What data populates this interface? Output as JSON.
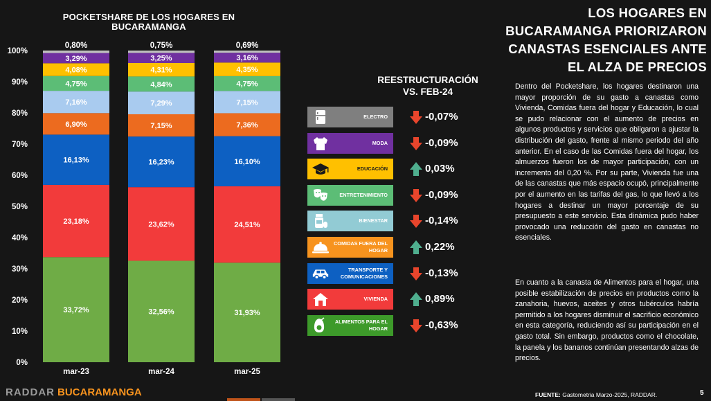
{
  "chart_data": {
    "type": "bar",
    "stacked": true,
    "title": "POCKETSHARE DE LOS HOGARES EN BUCARAMANGA",
    "categories": [
      "mar-23",
      "mar-24",
      "mar-25"
    ],
    "ylim": [
      0,
      100
    ],
    "yticks": [
      "0%",
      "10%",
      "20%",
      "30%",
      "40%",
      "50%",
      "60%",
      "70%",
      "80%",
      "90%",
      "100%"
    ],
    "series": [
      {
        "color": "#6fac46",
        "values": [
          33.72,
          32.56,
          31.93
        ],
        "labels": [
          "33,72%",
          "32,56%",
          "31,93%"
        ]
      },
      {
        "color": "#f23b3b",
        "values": [
          23.18,
          23.62,
          24.51
        ],
        "labels": [
          "23,18%",
          "23,62%",
          "24,51%"
        ]
      },
      {
        "color": "#0d60c2",
        "values": [
          16.13,
          16.23,
          16.1
        ],
        "labels": [
          "16,13%",
          "16,23%",
          "16,10%"
        ]
      },
      {
        "color": "#ec6b1f",
        "values": [
          6.9,
          7.15,
          7.36
        ],
        "labels": [
          "6,90%",
          "7,15%",
          "7,36%"
        ]
      },
      {
        "color": "#a9cbef",
        "values": [
          7.16,
          7.29,
          7.15
        ],
        "labels": [
          "7,16%",
          "7,29%",
          "7,15%"
        ]
      },
      {
        "color": "#5cbd76",
        "values": [
          4.75,
          4.84,
          4.75
        ],
        "labels": [
          "4,75%",
          "4,84%",
          "4,75%"
        ]
      },
      {
        "color": "#ffc000",
        "values": [
          4.08,
          4.31,
          4.35
        ],
        "labels": [
          "4,08%",
          "4,31%",
          "4,35%"
        ]
      },
      {
        "color": "#7030a0",
        "values": [
          3.29,
          3.25,
          3.16
        ],
        "labels": [
          "3,29%",
          "3,25%",
          "3,16%"
        ]
      },
      {
        "color": "#bfbfbf",
        "values": [
          0.8,
          0.75,
          0.69
        ],
        "labels": [
          "0,80%",
          "0,75%",
          "0,69%"
        ]
      }
    ]
  },
  "headline": [
    "LOS HOGARES EN",
    "BUCARAMANGA PRIORIZARON",
    "CANASTAS ESENCIALES ANTE",
    "EL ALZA DE PRECIOS"
  ],
  "restructuring": {
    "title": [
      "REESTRUCTURACIÓN",
      "VS. FEB-24"
    ],
    "items": [
      {
        "label": "ELECTRO",
        "value": "-0,07%",
        "direction": "down",
        "color": "#7f7f7f",
        "icon": "fridge-icon"
      },
      {
        "label": "MODA",
        "value": "-0,09%",
        "direction": "down",
        "color": "#7030a0",
        "icon": "shirt-icon"
      },
      {
        "label": "EDUCACIÓN",
        "value": "0,03%",
        "direction": "up",
        "color": "#ffc000",
        "icon": "graduation-cap-icon"
      },
      {
        "label": "ENTRETENIMIENTO",
        "value": "-0,09%",
        "direction": "down",
        "color": "#5cbd76",
        "icon": "theater-masks-icon"
      },
      {
        "label": "BIENESTAR",
        "value": "-0,14%",
        "direction": "down",
        "color": "#92cbd4",
        "icon": "pill-bottle-icon"
      },
      {
        "label": "COMIDAS FUERA DEL HOGAR",
        "value": "0,22%",
        "direction": "up",
        "color": "#f7931e",
        "icon": "food-cloche-icon"
      },
      {
        "label": "TRANSPORTE Y COMUNICACIONES",
        "value": "-0,13%",
        "direction": "down",
        "color": "#0d60c2",
        "icon": "car-icon"
      },
      {
        "label": "VIVIENDA",
        "value": "0,89%",
        "direction": "up",
        "color": "#f23b3b",
        "icon": "house-icon"
      },
      {
        "label": "ALIMENTOS PARA EL HOGAR",
        "value": "-0,63%",
        "direction": "down",
        "color": "#3d9a2a",
        "icon": "avocado-icon"
      }
    ]
  },
  "colors": {
    "arrow_down": "#e8452c",
    "arrow_up": "#4fae8e"
  },
  "paragraphs": [
    "Dentro del Pocketshare, los hogares destinaron una mayor proporción de su gasto a canastas como Vivienda, Comidas fuera del hogar y Educación, lo cual se pudo relacionar con el aumento de precios en algunos productos y servicios que obligaron a ajustar la distribución del gasto, frente al mismo periodo del año anterior. En el caso de las Comidas fuera del hogar, los almuerzos fueron los de mayor participación, con un incremento del 0,20 %. Por su parte, Vivienda fue una de las canastas que más espacio ocupó, principalmente por el aumento en las tarifas del gas, lo que llevó a los hogares a destinar un mayor porcentaje de su presupuesto a este servicio. Esta dinámica pudo haber provocado una reducción del gasto en canastas no esenciales.",
    "En cuanto a la canasta de Alimentos para el hogar, una posible estabilización de precios en productos como la zanahoria, huevos, aceites y otros tubérculos habría permitido a los hogares disminuir el sacrificio económico en esta categoría, reduciendo así su participación en el gasto total. Sin embargo, productos como el chocolate, la panela y los bananos continúan presentando alzas de precios."
  ],
  "footer": {
    "logo": "RADDAR",
    "city": "BUCARAMANGA",
    "source_label": "FUENTE:",
    "source_text": " Gastometria Marzo-2025, RADDAR.",
    "page": "5"
  }
}
